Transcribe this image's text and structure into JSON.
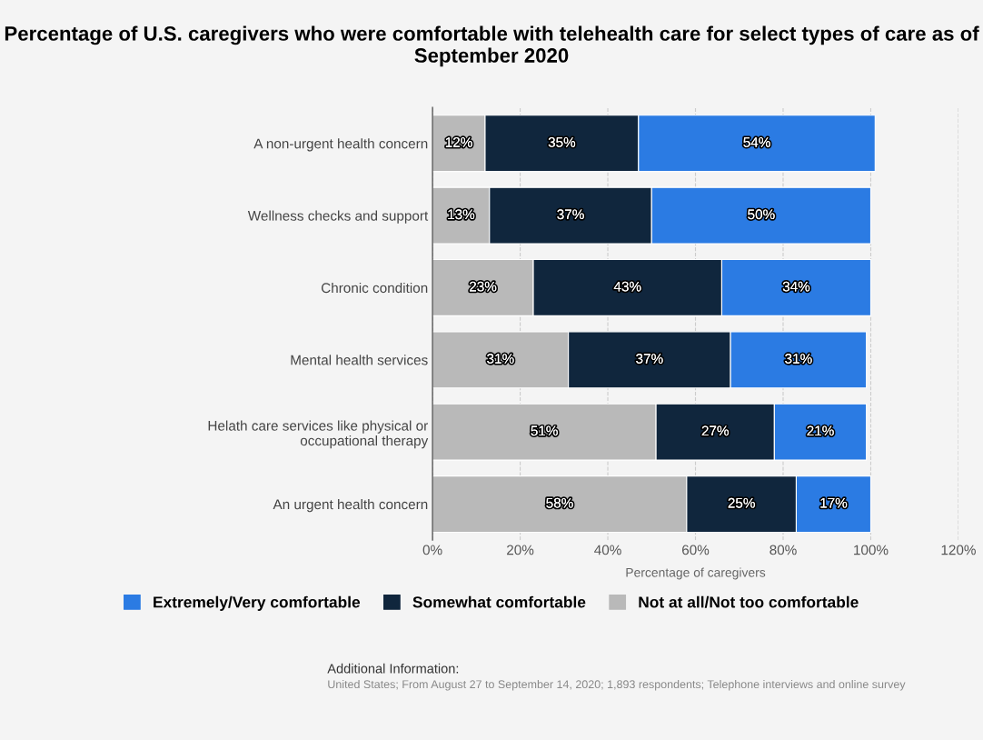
{
  "chart_data": {
    "type": "bar",
    "orientation": "horizontal",
    "stacked": true,
    "title": "Percentage of U.S. caregivers who were comfortable with telehealth care for select types of care as of September 2020",
    "xlabel": "Percentage of caregivers",
    "categories": [
      "A non-urgent health concern",
      "Wellness checks and support",
      "Chronic condition",
      "Mental health services",
      "Helath care services like physical or occupational therapy",
      "An urgent health concern"
    ],
    "series": [
      {
        "name": "Not at all/Not too comfortable",
        "color": "#b9b9b9",
        "values": [
          12,
          13,
          23,
          31,
          51,
          58
        ],
        "value_labels": [
          "12%",
          "13%",
          "23%",
          "31%",
          "51%",
          "58%"
        ]
      },
      {
        "name": "Somewhat comfortable",
        "color": "#10263d",
        "values": [
          35,
          37,
          43,
          37,
          27,
          25
        ],
        "value_labels": [
          "35%",
          "37%",
          "43%",
          "37%",
          "27%",
          "25%"
        ]
      },
      {
        "name": "Extremely/Very comfortable",
        "color": "#2b7be3",
        "values": [
          54,
          50,
          34,
          31,
          21,
          17
        ],
        "value_labels": [
          "54%",
          "50%",
          "34%",
          "31%",
          "21%",
          "17%"
        ]
      }
    ],
    "xlim": [
      0,
      120
    ],
    "xticks": [
      {
        "value": 0,
        "label": "0%"
      },
      {
        "value": 20,
        "label": "20%"
      },
      {
        "value": 40,
        "label": "40%"
      },
      {
        "value": 60,
        "label": "60%"
      },
      {
        "value": 80,
        "label": "80%"
      },
      {
        "value": 100,
        "label": "100%"
      },
      {
        "value": 120,
        "label": "120%"
      }
    ],
    "grid": "x",
    "legend": "bottom",
    "annotations": [
      "Additional Information:",
      "United States; From August 27 to September 14, 2020; 1,893 respondents; Telephone interviews and online survey"
    ]
  }
}
